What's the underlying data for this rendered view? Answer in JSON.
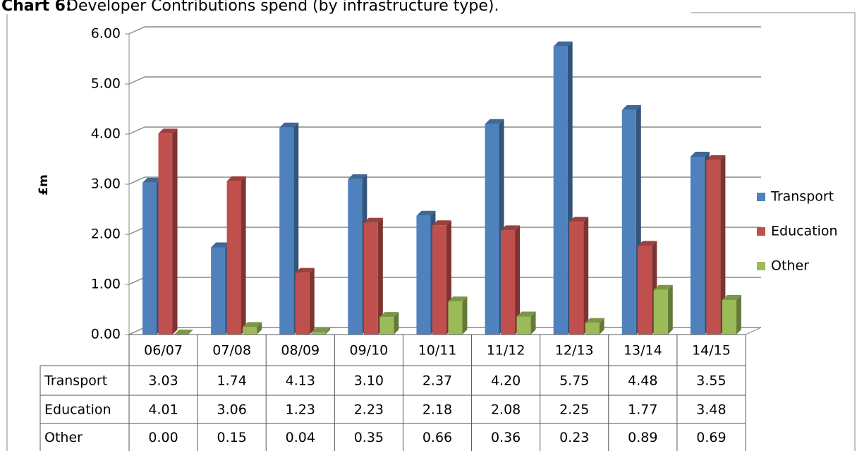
{
  "chart_data": {
    "type": "bar3d",
    "title": "Chart 6:",
    "subtitle": "Developer Contributions spend (by infrastructure type).",
    "y_label": "£m",
    "categories": [
      "06/07",
      "07/08",
      "08/09",
      "09/10",
      "10/11",
      "11/12",
      "12/13",
      "13/14",
      "14/15"
    ],
    "series": [
      {
        "name": "Transport",
        "color": "#4f81bd",
        "values": [
          3.03,
          1.74,
          4.13,
          3.1,
          2.37,
          4.2,
          5.75,
          4.48,
          3.55
        ],
        "value_labels": [
          "3.03",
          "1.74",
          "4.13",
          "3.10",
          "2.37",
          "4.20",
          "5.75",
          "4.48",
          "3.55"
        ]
      },
      {
        "name": "Education",
        "color": "#c0504d",
        "values": [
          4.01,
          3.06,
          1.23,
          2.23,
          2.18,
          2.08,
          2.25,
          1.77,
          3.48
        ],
        "value_labels": [
          "4.01",
          "3.06",
          "1.23",
          "2.23",
          "2.18",
          "2.08",
          "2.25",
          "1.77",
          "3.48"
        ]
      },
      {
        "name": "Other",
        "color": "#9bbb59",
        "values": [
          0,
          0.15,
          0.04,
          0.35,
          0.66,
          0.36,
          0.23,
          0.89,
          0.69
        ],
        "value_labels": [
          "0.00",
          "0.15",
          "0.04",
          "0.35",
          "0.66",
          "0.36",
          "0.23",
          "0.89",
          "0.69"
        ]
      }
    ],
    "ylim": [
      0,
      6
    ],
    "yticks": [
      {
        "value": 0,
        "label": "0.00"
      },
      {
        "value": 1,
        "label": "1.00"
      },
      {
        "value": 2,
        "label": "2.00"
      },
      {
        "value": 3,
        "label": "3.00"
      },
      {
        "value": 4,
        "label": "4.00"
      },
      {
        "value": 5,
        "label": "5.00"
      },
      {
        "value": 6,
        "label": "6.00"
      }
    ],
    "grid": true,
    "legend": "right"
  }
}
